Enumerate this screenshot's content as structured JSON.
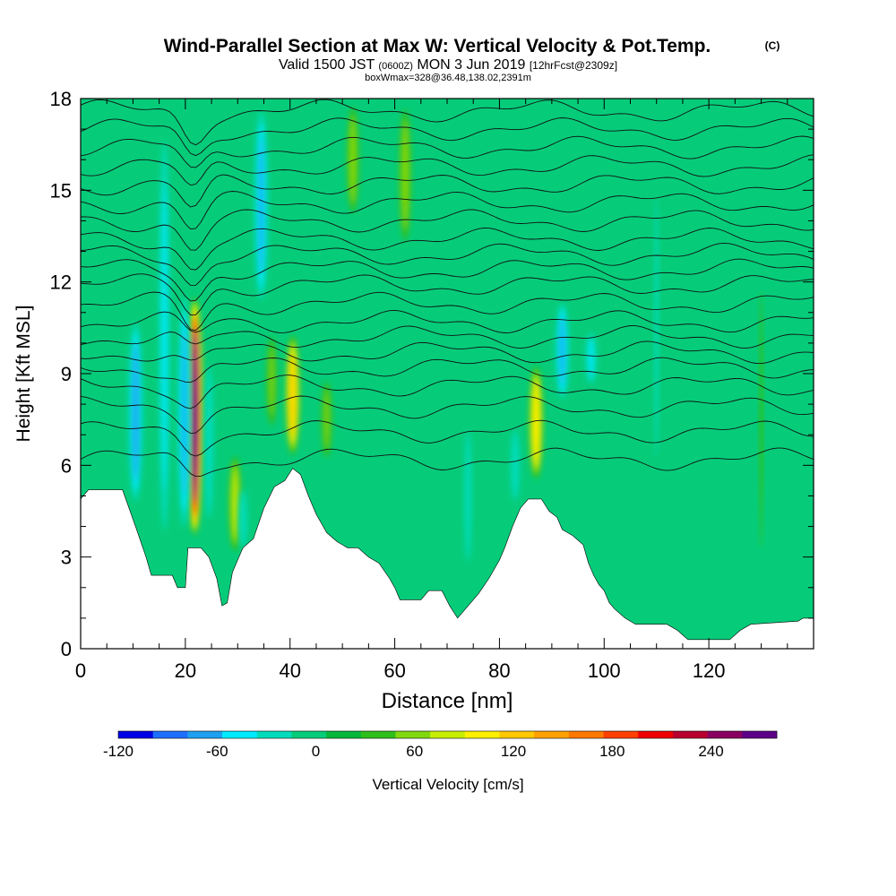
{
  "title": {
    "main": "Wind-Parallel Section at Max W: Vertical Velocity & Pot.Temp.",
    "copyright": "(C)",
    "valid_prefix": "Valid 1500 JST",
    "valid_utc": "(0600Z)",
    "valid_date": "MON 3 Jun 2019",
    "forecast": "[12hrFcst@2309z]",
    "box_info": "boxWmax=328@36.48,138.02,2391m"
  },
  "chart_data": {
    "type": "heatmap",
    "xlabel": "Distance [nm]",
    "ylabel": "Height [Kft MSL]",
    "xlim": [
      0,
      140
    ],
    "ylim": [
      0,
      18
    ],
    "x_ticks": [
      0,
      20,
      40,
      60,
      80,
      100,
      120
    ],
    "y_ticks": [
      0,
      3,
      6,
      9,
      12,
      15,
      18
    ],
    "colorbar": {
      "label": "Vertical Velocity [cm/s]",
      "min": -120,
      "max": 280,
      "step": 20,
      "tick_values": [
        -120,
        -60,
        0,
        60,
        120,
        180,
        240
      ],
      "colors": [
        "#0000e6",
        "#1f6fff",
        "#1ea0f0",
        "#00eaff",
        "#00dcbb",
        "#06cc7a",
        "#05b83c",
        "#2fbf1a",
        "#82d80f",
        "#c7ee00",
        "#fff000",
        "#ffc800",
        "#ffa000",
        "#ff7800",
        "#ff4000",
        "#ee0000",
        "#b70030",
        "#8a0060",
        "#5c0088"
      ]
    },
    "terrain_kft": [
      [
        0,
        4.9
      ],
      [
        1.5,
        5.2
      ],
      [
        8,
        5.2
      ],
      [
        10.5,
        4.0
      ],
      [
        12.5,
        3.0
      ],
      [
        13.5,
        2.4
      ],
      [
        17.5,
        2.4
      ],
      [
        18.5,
        2.0
      ],
      [
        20,
        2.0
      ],
      [
        20.5,
        3.3
      ],
      [
        23,
        3.3
      ],
      [
        24.5,
        3.0
      ],
      [
        26,
        2.3
      ],
      [
        27,
        1.4
      ],
      [
        28,
        1.5
      ],
      [
        29,
        2.5
      ],
      [
        31,
        3.3
      ],
      [
        33,
        3.6
      ],
      [
        35,
        4.6
      ],
      [
        37,
        5.3
      ],
      [
        39,
        5.5
      ],
      [
        40.5,
        5.9
      ],
      [
        42,
        5.7
      ],
      [
        43.5,
        5.0
      ],
      [
        45,
        4.4
      ],
      [
        47,
        3.8
      ],
      [
        49,
        3.5
      ],
      [
        51,
        3.3
      ],
      [
        53,
        3.3
      ],
      [
        55,
        3.0
      ],
      [
        57,
        2.8
      ],
      [
        59,
        2.3
      ],
      [
        60,
        2.0
      ],
      [
        61,
        1.6
      ],
      [
        63,
        1.6
      ],
      [
        65,
        1.6
      ],
      [
        66.5,
        1.9
      ],
      [
        69,
        1.9
      ],
      [
        70.5,
        1.4
      ],
      [
        72,
        1.0
      ],
      [
        74,
        1.4
      ],
      [
        76,
        1.8
      ],
      [
        78,
        2.3
      ],
      [
        80,
        2.9
      ],
      [
        81,
        3.3
      ],
      [
        82.5,
        4.0
      ],
      [
        84,
        4.6
      ],
      [
        85.5,
        4.9
      ],
      [
        88,
        4.9
      ],
      [
        89.5,
        4.5
      ],
      [
        91,
        4.3
      ],
      [
        92,
        3.9
      ],
      [
        94,
        3.7
      ],
      [
        96,
        3.4
      ],
      [
        97,
        2.8
      ],
      [
        98,
        2.4
      ],
      [
        99,
        2.1
      ],
      [
        100,
        1.9
      ],
      [
        101,
        1.5
      ],
      [
        102,
        1.3
      ],
      [
        104,
        1.0
      ],
      [
        106,
        0.8
      ],
      [
        109,
        0.8
      ],
      [
        112,
        0.8
      ],
      [
        114,
        0.6
      ],
      [
        116,
        0.3
      ],
      [
        124,
        0.3
      ],
      [
        126,
        0.6
      ],
      [
        128,
        0.8
      ],
      [
        137,
        0.9
      ],
      [
        138,
        1.0
      ],
      [
        140,
        1.0
      ]
    ],
    "vv_features": [
      {
        "x": 21.8,
        "z_bottom": 3.6,
        "z_top": 11.6,
        "peak_cm_s": 260
      },
      {
        "x": 40.5,
        "z_bottom": 6.2,
        "z_top": 10.4,
        "peak_cm_s": 100
      },
      {
        "x": 87.0,
        "z_bottom": 5.4,
        "z_top": 9.4,
        "peak_cm_s": 90
      },
      {
        "x": 29.5,
        "z_bottom": 3.0,
        "z_top": 6.5,
        "peak_cm_s": 60
      },
      {
        "x": 19.8,
        "z_bottom": 3.5,
        "z_top": 12.0,
        "peak_cm_s": -60
      },
      {
        "x": 10.5,
        "z_bottom": 4.5,
        "z_top": 11.0,
        "peak_cm_s": -70
      },
      {
        "x": 16.0,
        "z_bottom": 2.5,
        "z_top": 18.0,
        "peak_cm_s": -40
      },
      {
        "x": 34.5,
        "z_bottom": 11.0,
        "z_top": 18.0,
        "peak_cm_s": -60
      },
      {
        "x": 92.0,
        "z_bottom": 8.0,
        "z_top": 11.5,
        "peak_cm_s": -60
      },
      {
        "x": 97.5,
        "z_bottom": 8.5,
        "z_top": 10.5,
        "peak_cm_s": -40
      },
      {
        "x": 24.5,
        "z_bottom": 3.5,
        "z_top": 10.0,
        "peak_cm_s": -30
      },
      {
        "x": 52.0,
        "z_bottom": 14.0,
        "z_top": 18.0,
        "peak_cm_s": 50
      },
      {
        "x": 62.0,
        "z_bottom": 13.0,
        "z_top": 18.0,
        "peak_cm_s": 50
      },
      {
        "x": 47.0,
        "z_bottom": 6.0,
        "z_top": 9.0,
        "peak_cm_s": 40
      },
      {
        "x": 31.0,
        "z_bottom": 3.0,
        "z_top": 5.5,
        "peak_cm_s": -30
      },
      {
        "x": 36.5,
        "z_bottom": 7.0,
        "z_top": 10.5,
        "peak_cm_s": 40
      },
      {
        "x": 110.0,
        "z_bottom": 4.0,
        "z_top": 17.0,
        "peak_cm_s": -20
      },
      {
        "x": 130.0,
        "z_bottom": 1.0,
        "z_top": 14.0,
        "peak_cm_s": 20
      },
      {
        "x": 74.0,
        "z_bottom": 2.0,
        "z_top": 8.0,
        "peak_cm_s": -25
      },
      {
        "x": 83.0,
        "z_bottom": 4.5,
        "z_top": 7.5,
        "peak_cm_s": -30
      }
    ],
    "theta_contour_heights_kft": [
      6.2,
      7.1,
      7.9,
      8.6,
      9.2,
      9.7,
      10.2,
      10.7,
      11.3,
      11.9,
      12.4,
      12.9,
      13.4,
      14.0,
      14.6,
      15.2,
      15.8,
      16.4,
      17.0,
      17.6
    ]
  }
}
